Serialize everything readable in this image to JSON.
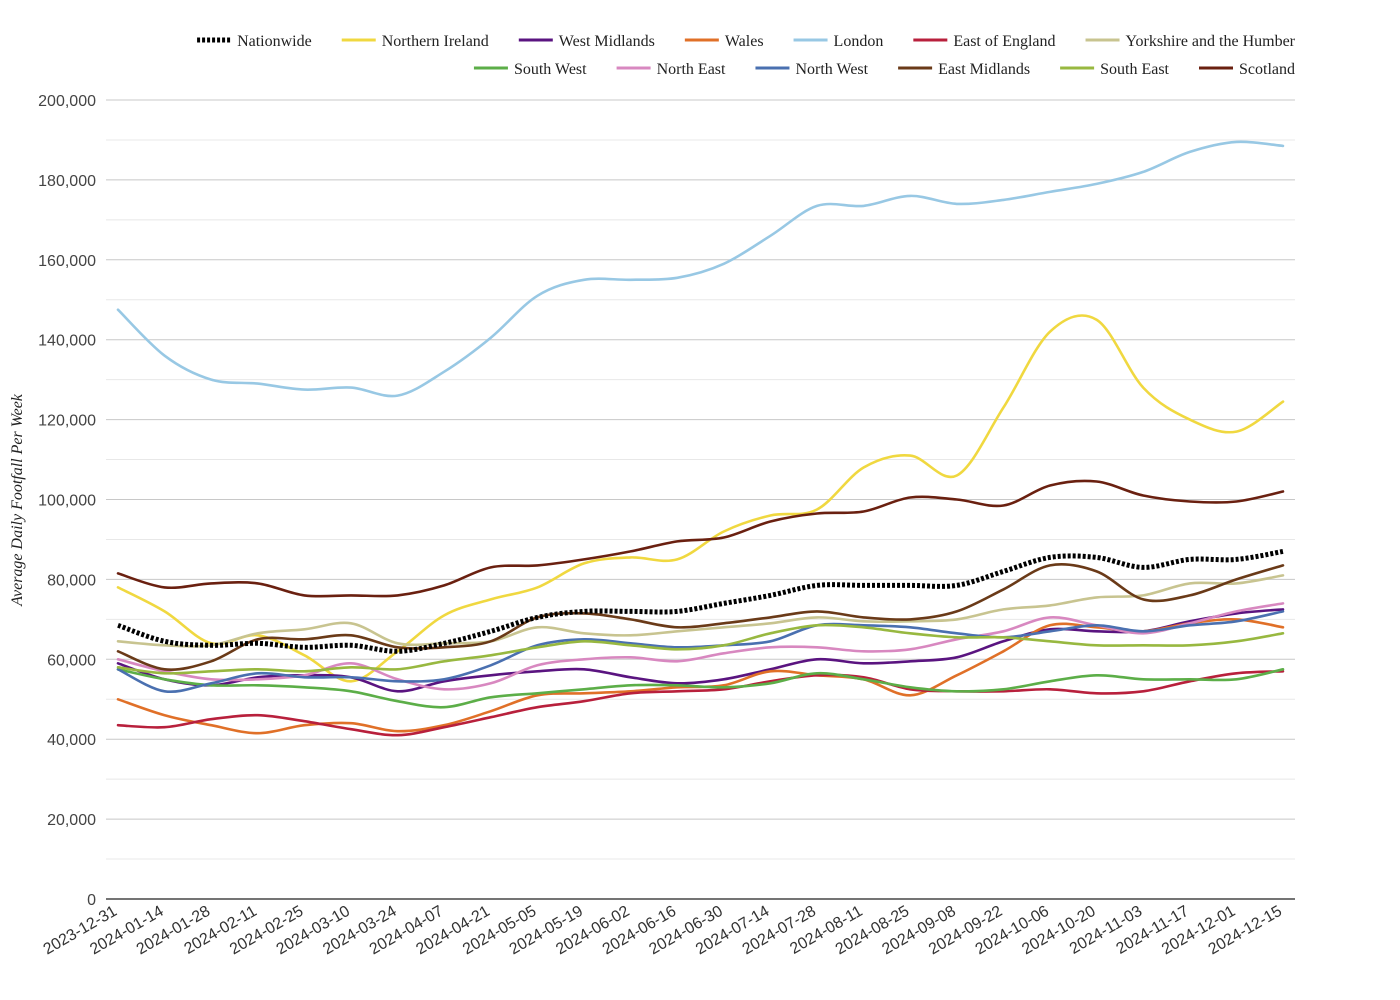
{
  "chart_data": {
    "type": "line",
    "title": "",
    "xlabel": "",
    "ylabel": "Average Daily Footfall Per Week",
    "ylim": [
      0,
      200000
    ],
    "ytick_labels": [
      "0",
      "20,000",
      "40,000",
      "60,000",
      "80,000",
      "100,000",
      "120,000",
      "140,000",
      "160,000",
      "180,000",
      "200,000"
    ],
    "x_tick_labels": [
      "2023-12-31",
      "2024-01-14",
      "2024-01-28",
      "2024-02-11",
      "2024-02-25",
      "2024-03-10",
      "2024-03-24",
      "2024-04-07",
      "2024-04-21",
      "2024-05-05",
      "2024-05-19",
      "2024-06-02",
      "2024-06-16",
      "2024-06-30",
      "2024-07-14",
      "2024-07-28",
      "2024-08-11",
      "2024-08-25",
      "2024-09-08",
      "2024-09-22",
      "2024-10-06",
      "2024-10-20",
      "2024-11-03",
      "2024-11-17",
      "2024-12-01",
      "2024-12-15"
    ],
    "x": [
      "2023-12-31",
      "2024-01-14",
      "2024-01-28",
      "2024-02-11",
      "2024-02-25",
      "2024-03-10",
      "2024-03-24",
      "2024-04-07",
      "2024-04-21",
      "2024-05-05",
      "2024-05-19",
      "2024-06-02",
      "2024-06-16",
      "2024-06-30",
      "2024-07-14",
      "2024-07-28",
      "2024-08-11",
      "2024-08-25",
      "2024-09-08",
      "2024-09-22",
      "2024-10-06",
      "2024-10-20",
      "2024-11-03",
      "2024-11-17",
      "2024-12-01",
      "2024-12-15"
    ],
    "grid": true,
    "legend_position": "top",
    "series": [
      {
        "name": "Nationwide",
        "color": "#000000",
        "dashed": true,
        "values": [
          68500,
          64500,
          63500,
          64000,
          63000,
          63500,
          62000,
          64000,
          67000,
          70500,
          72000,
          72000,
          72000,
          74000,
          76000,
          78500,
          78500,
          78500,
          78500,
          82000,
          85500,
          85500,
          83000,
          85000,
          85000,
          87000
        ]
      },
      {
        "name": "Northern Ireland",
        "color": "#f0d840",
        "values": [
          78000,
          72000,
          64000,
          66000,
          61000,
          54500,
          62000,
          71000,
          75000,
          78000,
          84000,
          85500,
          85000,
          92000,
          96000,
          97500,
          108000,
          111000,
          106000,
          123000,
          142000,
          145000,
          128000,
          120000,
          117000,
          124500
        ]
      },
      {
        "name": "West Midlands",
        "color": "#5a1480",
        "values": [
          59000,
          55000,
          53500,
          55500,
          56000,
          55500,
          52000,
          54500,
          56000,
          57000,
          57500,
          55500,
          54000,
          55000,
          57500,
          60000,
          59000,
          59500,
          60500,
          64500,
          67500,
          67000,
          67000,
          69500,
          71500,
          72500
        ]
      },
      {
        "name": "Wales",
        "color": "#e07028",
        "values": [
          50000,
          46000,
          43500,
          41500,
          43500,
          44000,
          42000,
          43500,
          47000,
          51000,
          51500,
          52000,
          53000,
          53500,
          57000,
          56000,
          55000,
          51000,
          56000,
          62000,
          68500,
          68000,
          67000,
          69000,
          70000,
          68000
        ]
      },
      {
        "name": "London",
        "color": "#98c8e4",
        "values": [
          147500,
          136000,
          130000,
          129000,
          127500,
          128000,
          126000,
          132000,
          140500,
          151000,
          155000,
          155000,
          155500,
          159000,
          166000,
          173500,
          173500,
          176000,
          174000,
          175000,
          177000,
          179000,
          182000,
          187000,
          189500,
          188500
        ]
      },
      {
        "name": "East of England",
        "color": "#b8203c",
        "values": [
          43500,
          43000,
          45000,
          46000,
          44500,
          42500,
          41000,
          43000,
          45500,
          48000,
          49500,
          51500,
          52000,
          52500,
          54500,
          56000,
          55500,
          52500,
          52000,
          52000,
          52500,
          51500,
          52000,
          54500,
          56500,
          57000
        ]
      },
      {
        "name": "Yorkshire and the Humber",
        "color": "#c8c490",
        "values": [
          64500,
          63500,
          63500,
          66500,
          67500,
          69000,
          64000,
          64000,
          64500,
          68000,
          66500,
          66000,
          67000,
          68000,
          69000,
          70500,
          69500,
          69500,
          70000,
          72500,
          73500,
          75500,
          76000,
          79000,
          79000,
          81000
        ]
      },
      {
        "name": "South West",
        "color": "#5cae48",
        "values": [
          57500,
          55000,
          53500,
          53500,
          53000,
          52000,
          49500,
          48000,
          50500,
          51500,
          52500,
          53500,
          53500,
          53000,
          54000,
          56500,
          55000,
          53000,
          52000,
          52500,
          54500,
          56000,
          55000,
          55000,
          55000,
          57500
        ]
      },
      {
        "name": "North East",
        "color": "#d888c0",
        "values": [
          60000,
          57000,
          55000,
          55000,
          56000,
          59000,
          55000,
          52500,
          54000,
          58500,
          60000,
          60500,
          59500,
          61500,
          63000,
          63000,
          62000,
          62500,
          65000,
          67000,
          70500,
          68500,
          66500,
          69000,
          72000,
          74000
        ]
      },
      {
        "name": "North West",
        "color": "#4a70b0",
        "values": [
          57500,
          52000,
          54000,
          56500,
          55500,
          55500,
          54500,
          55000,
          58500,
          63500,
          65000,
          64000,
          63000,
          63500,
          64500,
          68500,
          68500,
          68000,
          66500,
          65500,
          67000,
          68500,
          67000,
          68500,
          69500,
          72000
        ]
      },
      {
        "name": "East Midlands",
        "color": "#6a3a18",
        "values": [
          62000,
          57500,
          59500,
          65000,
          65000,
          66000,
          63000,
          63000,
          64500,
          70500,
          71500,
          70000,
          68000,
          69000,
          70500,
          72000,
          70500,
          70000,
          72000,
          77500,
          83500,
          82000,
          75000,
          76000,
          80000,
          83500
        ]
      },
      {
        "name": "South East",
        "color": "#98b840",
        "values": [
          58000,
          56500,
          57000,
          57500,
          57000,
          58000,
          57500,
          59500,
          61000,
          63000,
          64500,
          63500,
          62500,
          63500,
          66500,
          68500,
          68000,
          66500,
          65500,
          65500,
          64500,
          63500,
          63500,
          63500,
          64500,
          66500
        ]
      },
      {
        "name": "Scotland",
        "color": "#6a2010",
        "values": [
          81500,
          78000,
          79000,
          79000,
          76000,
          76000,
          76000,
          78500,
          83000,
          83500,
          85000,
          87000,
          89500,
          90500,
          94500,
          96500,
          97000,
          100500,
          100000,
          98500,
          103500,
          104500,
          101000,
          99500,
          99500,
          102000
        ]
      }
    ]
  }
}
